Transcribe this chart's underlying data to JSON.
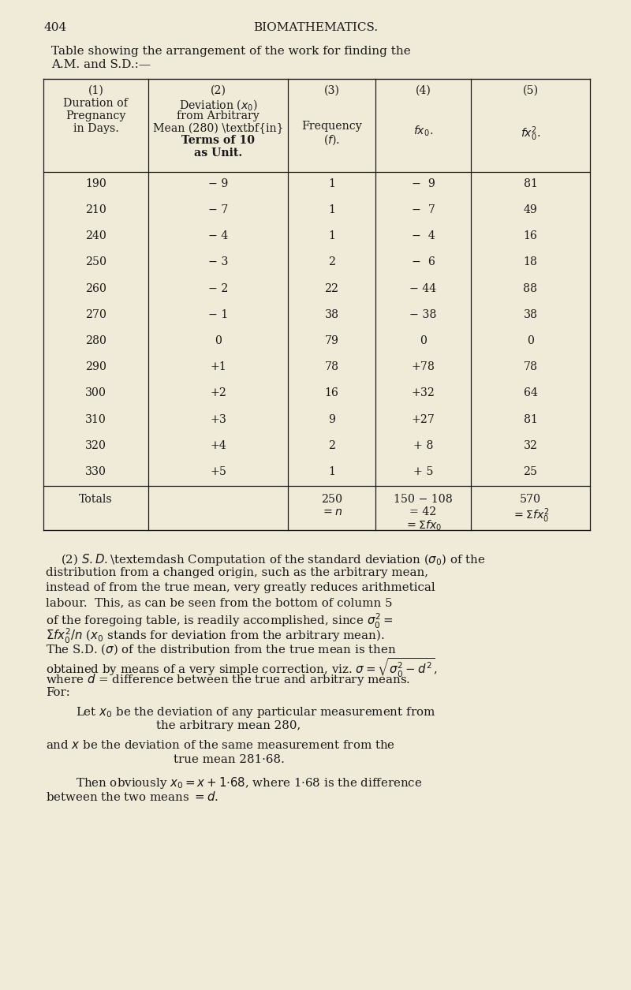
{
  "bg_color": "#f0ead8",
  "text_color": "#1a1a1a",
  "page_number": "404",
  "page_header": "BIOMATHEMATICS.",
  "rows": [
    [
      "190",
      "− 9",
      "1",
      "−  9",
      "81"
    ],
    [
      "210",
      "− 7",
      "1",
      "−  7",
      "49"
    ],
    [
      "240",
      "− 4",
      "1",
      "−  4",
      "16"
    ],
    [
      "250",
      "− 3",
      "2",
      "−  6",
      "18"
    ],
    [
      "260",
      "− 2",
      "22",
      "− 44",
      "88"
    ],
    [
      "270",
      "− 1",
      "38",
      "− 38",
      "38"
    ],
    [
      "280",
      "0",
      "79",
      "0",
      "0"
    ],
    [
      "290",
      "+1",
      "78",
      "+78",
      "78"
    ],
    [
      "300",
      "+2",
      "16",
      "+32",
      "64"
    ],
    [
      "310",
      "+3",
      "9",
      "+27",
      "81"
    ],
    [
      "320",
      "+4",
      "2",
      "+ 8",
      "32"
    ],
    [
      "330",
      "+5",
      "1",
      "+ 5",
      "25"
    ]
  ]
}
